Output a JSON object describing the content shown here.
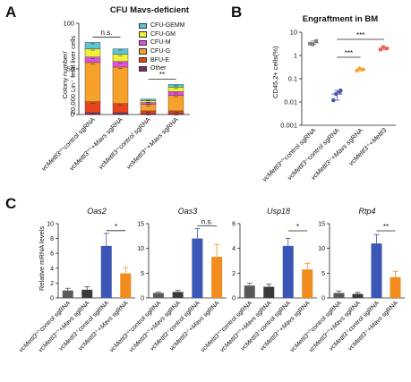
{
  "panels": {
    "a": "A",
    "b": "B",
    "c": "C"
  },
  "chart_data": [
    {
      "id": "A",
      "type": "bar",
      "stacked": true,
      "title": "CFU Mavs-deficient",
      "ylabel_line1": "Colony number/",
      "ylabel_line2": "20,000 Lin⁻ fetal liver cells",
      "ylim": [
        0,
        100
      ],
      "yticks": [
        "0",
        "50",
        "100"
      ],
      "categories": [
        "vcMettl3+/+control sgRNA",
        "vcMettl3+/++Mavs sgRNA",
        "vcMettl3-/-control sgRNA",
        "vcMettl3-/-+Mavs sgRNA"
      ],
      "series": [
        {
          "name": "Other",
          "color": "#7a2a6e",
          "values": [
            2,
            2,
            1,
            1
          ]
        },
        {
          "name": "BFU-E",
          "color": "#e8431c",
          "values": [
            12,
            10,
            3,
            3
          ]
        },
        {
          "name": "CFU-G",
          "color": "#f7a12b",
          "values": [
            43,
            40,
            7,
            17
          ]
        },
        {
          "name": "CFU-M",
          "color": "#e050e0",
          "values": [
            6,
            6,
            2,
            4
          ]
        },
        {
          "name": "CFU-GM",
          "color": "#f2ef38",
          "values": [
            9,
            8,
            2,
            5
          ]
        },
        {
          "name": "CFU-GEMM",
          "color": "#58c6d6",
          "values": [
            7,
            6,
            2,
            3
          ]
        }
      ],
      "legend_order": [
        "CFU-GEMM",
        "CFU-GM",
        "CFU-M",
        "CFU-G",
        "BFU-E",
        "Other"
      ],
      "annotations": [
        {
          "text": "n.s.",
          "between": [
            0,
            1
          ]
        },
        {
          "text": "**",
          "between": [
            2,
            3
          ]
        }
      ]
    },
    {
      "id": "B",
      "type": "scatter",
      "title": "Engraftment in BM",
      "ylabel": "CD45.2+ cells(%)",
      "yscale": "log",
      "ylim": [
        0.001,
        10
      ],
      "yticks": [
        "0.001",
        "0.01",
        "0.1",
        "1",
        "10"
      ],
      "categories": [
        "vcMettl3+/+control sgRNA",
        "vcMettl3-/-control sgRNA",
        "vcMettl3-/-+Mavs sgRNA",
        "vcMettl3-/-+Mettl3"
      ],
      "groups": [
        {
          "color": "#7f7f7f",
          "shape": "square",
          "points": [
            3.2,
            4.2,
            3.0
          ],
          "mean": 3.5
        },
        {
          "color": "#4a5aa8",
          "shape": "circle",
          "points": [
            0.012,
            0.028,
            0.022,
            0.031
          ],
          "mean": 0.022
        },
        {
          "color": "#f7a12b",
          "shape": "diamond",
          "points": [
            0.22,
            0.25,
            0.28
          ],
          "mean": 0.25
        },
        {
          "color": "#e8605a",
          "shape": "square",
          "points": [
            1.8,
            2.0,
            2.3
          ],
          "mean": 2.05
        }
      ],
      "annotations": [
        {
          "text": "***",
          "between": [
            1,
            3
          ]
        },
        {
          "text": "***",
          "between": [
            1,
            2
          ]
        }
      ]
    },
    {
      "id": "C",
      "type": "bar",
      "ylabel": "Relative mRNA levels",
      "categories": [
        "vcMettl3+/+control sgRNA",
        "vcMettl3+/++Mavs sgRNA",
        "vcMettl3-/-control sgRNA",
        "vcMettl3-/-+Mavs sgRNA"
      ],
      "colors": [
        "#595959",
        "#3a3a3a",
        "#3b56b5",
        "#f28c1e"
      ],
      "subplots": [
        {
          "title": "Oas2",
          "ylim": [
            0,
            10
          ],
          "yticks": [
            "0",
            "2",
            "4",
            "6",
            "8",
            "10"
          ],
          "values": [
            1.0,
            1.1,
            7.0,
            3.3
          ],
          "errors": [
            0.3,
            0.4,
            1.7,
            0.8
          ],
          "sig": {
            "text": "*",
            "between": [
              2,
              3
            ]
          }
        },
        {
          "title": "Oas3",
          "ylim": [
            0,
            15
          ],
          "yticks": [
            "0",
            "5",
            "10",
            "15"
          ],
          "values": [
            1.0,
            1.2,
            12.0,
            8.3
          ],
          "errors": [
            0.2,
            0.3,
            2.0,
            2.5
          ],
          "sig": {
            "text": "n.s.",
            "between": [
              2,
              3
            ]
          }
        },
        {
          "title": "Usp18",
          "ylim": [
            0,
            6
          ],
          "yticks": [
            "0",
            "2",
            "4",
            "6"
          ],
          "values": [
            1.0,
            0.9,
            4.2,
            2.3
          ],
          "errors": [
            0.2,
            0.2,
            0.6,
            0.5
          ],
          "sig": {
            "text": "*",
            "between": [
              2,
              3
            ]
          }
        },
        {
          "title": "Rtp4",
          "ylim": [
            0,
            15
          ],
          "yticks": [
            "0",
            "5",
            "10",
            "15"
          ],
          "values": [
            1.0,
            0.8,
            11.0,
            4.2
          ],
          "errors": [
            0.4,
            0.3,
            1.8,
            1.2
          ],
          "sig": {
            "text": "**",
            "between": [
              2,
              3
            ]
          }
        }
      ]
    }
  ]
}
